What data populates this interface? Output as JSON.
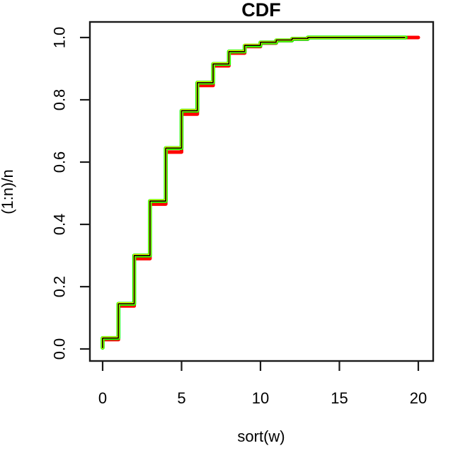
{
  "chart_data": {
    "type": "line",
    "subtype": "ecdf-step",
    "title": "CDF",
    "xlabel": "sort(w)",
    "ylabel": "(1:n)/n",
    "xlim": [
      0,
      20
    ],
    "ylim": [
      0,
      1
    ],
    "grid": false,
    "legend": "none",
    "x_ticks": [
      0,
      5,
      10,
      15,
      20
    ],
    "x_tick_labels": [
      "0",
      "5",
      "10",
      "15",
      "20"
    ],
    "y_ticks": [
      0.0,
      0.2,
      0.4,
      0.6,
      0.8,
      1.0
    ],
    "y_tick_labels": [
      "0.0",
      "0.2",
      "0.4",
      "0.6",
      "0.8",
      "1.0"
    ],
    "step_x": [
      0,
      1,
      2,
      3,
      4,
      5,
      6,
      7,
      8,
      9,
      10,
      11,
      12,
      13
    ],
    "series": [
      {
        "name": "red-cdf",
        "color": "#ff0000",
        "lwd": 5,
        "x_start": 0,
        "y_start": 0.004,
        "x_end": 20.0,
        "values": [
          0.03,
          0.138,
          0.29,
          0.465,
          0.632,
          0.754,
          0.846,
          0.909,
          0.95,
          0.971,
          0.982,
          0.99,
          0.995,
          1.0
        ]
      },
      {
        "name": "green-cdf",
        "color": "#00ff00",
        "lwd": 5.5,
        "x_start": 0,
        "y_start": 0.004,
        "x_end": 19.2,
        "values": [
          0.035,
          0.145,
          0.3,
          0.475,
          0.645,
          0.765,
          0.855,
          0.915,
          0.955,
          0.974,
          0.984,
          0.991,
          0.996,
          1.0
        ]
      },
      {
        "name": "yellow-cdf",
        "color": "#ffff00",
        "lwd": 3.4,
        "x_start": 0,
        "y_start": 0.004,
        "x_end": 19.15,
        "values": [
          0.036,
          0.146,
          0.301,
          0.476,
          0.646,
          0.766,
          0.856,
          0.916,
          0.956,
          0.976,
          0.985,
          0.992,
          0.997,
          1.0
        ]
      },
      {
        "name": "black-cdf",
        "color": "#000000",
        "lwd": 1.7,
        "x_start": 0,
        "y_start": 0.004,
        "x_end": 19.15,
        "values": [
          0.035,
          0.145,
          0.3,
          0.475,
          0.645,
          0.765,
          0.855,
          0.915,
          0.955,
          0.975,
          0.985,
          0.992,
          0.997,
          1.0
        ]
      }
    ],
    "colors": {
      "axis": "#1a1a1a",
      "background": "#ffffff"
    }
  }
}
